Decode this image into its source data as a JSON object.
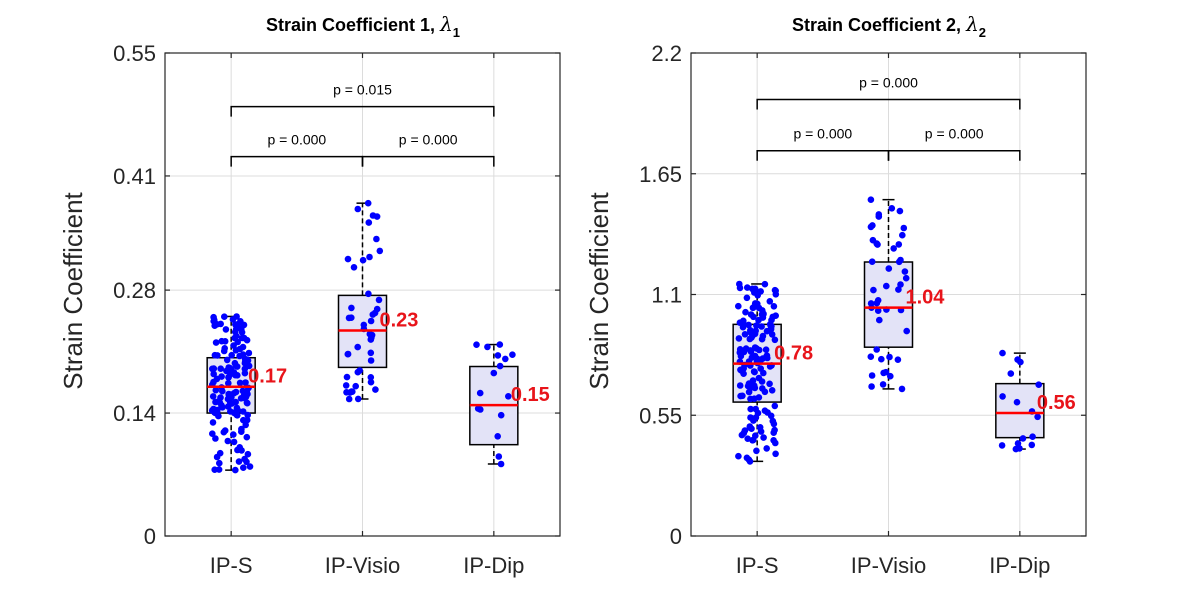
{
  "chart_data": [
    {
      "type": "box",
      "title": "Strain Coefficient 1, ",
      "title_symbol": "λ",
      "title_subscript": "1",
      "ylabel": "Strain Coefficient",
      "ylim": [
        0,
        0.55
      ],
      "yticks": [
        0,
        0.14,
        0.28,
        0.41,
        0.55
      ],
      "ytick_labels": [
        "0",
        "0.14",
        "0.28",
        "0.41",
        "0.55"
      ],
      "categories": [
        "IP-S",
        "IP-Visio",
        "IP-Dip"
      ],
      "grid": true,
      "colors": {
        "box_fill": "#e3e3f7",
        "points": "#0000ff",
        "median": "#ff0000",
        "median_label": "#e8141a"
      },
      "boxes": [
        {
          "q1": 0.14,
          "median": 0.17,
          "q3": 0.203,
          "whisker_low": 0.075,
          "whisker_high": 0.25,
          "n": 150,
          "median_label": "0.17"
        },
        {
          "q1": 0.192,
          "median": 0.234,
          "q3": 0.274,
          "whisker_low": 0.156,
          "whisker_high": 0.379,
          "n": 45,
          "median_label": "0.23"
        },
        {
          "q1": 0.104,
          "median": 0.149,
          "q3": 0.193,
          "whisker_low": 0.082,
          "whisker_high": 0.218,
          "n": 16,
          "median_label": "0.15"
        }
      ],
      "comparisons": [
        {
          "from": 0,
          "to": 1,
          "y": 0.432,
          "label": "p = 0.000"
        },
        {
          "from": 1,
          "to": 2,
          "y": 0.432,
          "label": "p = 0.000"
        },
        {
          "from": 0,
          "to": 2,
          "y": 0.489,
          "label": "p = 0.015"
        }
      ]
    },
    {
      "type": "box",
      "title": "Strain Coefficient 2, ",
      "title_symbol": "λ",
      "title_subscript": "2",
      "ylabel": "Strain Coefficient",
      "ylim": [
        0,
        2.2
      ],
      "yticks": [
        0,
        0.55,
        1.1,
        1.65,
        2.2
      ],
      "ytick_labels": [
        "0",
        "0.55",
        "1.1",
        "1.65",
        "2.2"
      ],
      "categories": [
        "IP-S",
        "IP-Visio",
        "IP-Dip"
      ],
      "grid": true,
      "colors": {
        "box_fill": "#e3e3f7",
        "points": "#0000ff",
        "median": "#ff0000",
        "median_label": "#e8141a"
      },
      "boxes": [
        {
          "q1": 0.61,
          "median": 0.785,
          "q3": 0.964,
          "whisker_low": 0.34,
          "whisker_high": 1.148,
          "n": 150,
          "median_label": "0.78"
        },
        {
          "q1": 0.86,
          "median": 1.04,
          "q3": 1.248,
          "whisker_low": 0.67,
          "whisker_high": 1.532,
          "n": 45,
          "median_label": "1.04"
        },
        {
          "q1": 0.448,
          "median": 0.56,
          "q3": 0.694,
          "whisker_low": 0.396,
          "whisker_high": 0.833,
          "n": 16,
          "median_label": "0.56"
        }
      ],
      "comparisons": [
        {
          "from": 0,
          "to": 1,
          "y": 1.755,
          "label": "p = 0.000"
        },
        {
          "from": 1,
          "to": 2,
          "y": 1.755,
          "label": "p = 0.000"
        },
        {
          "from": 0,
          "to": 2,
          "y": 1.988,
          "label": "p = 0.000"
        }
      ]
    }
  ]
}
